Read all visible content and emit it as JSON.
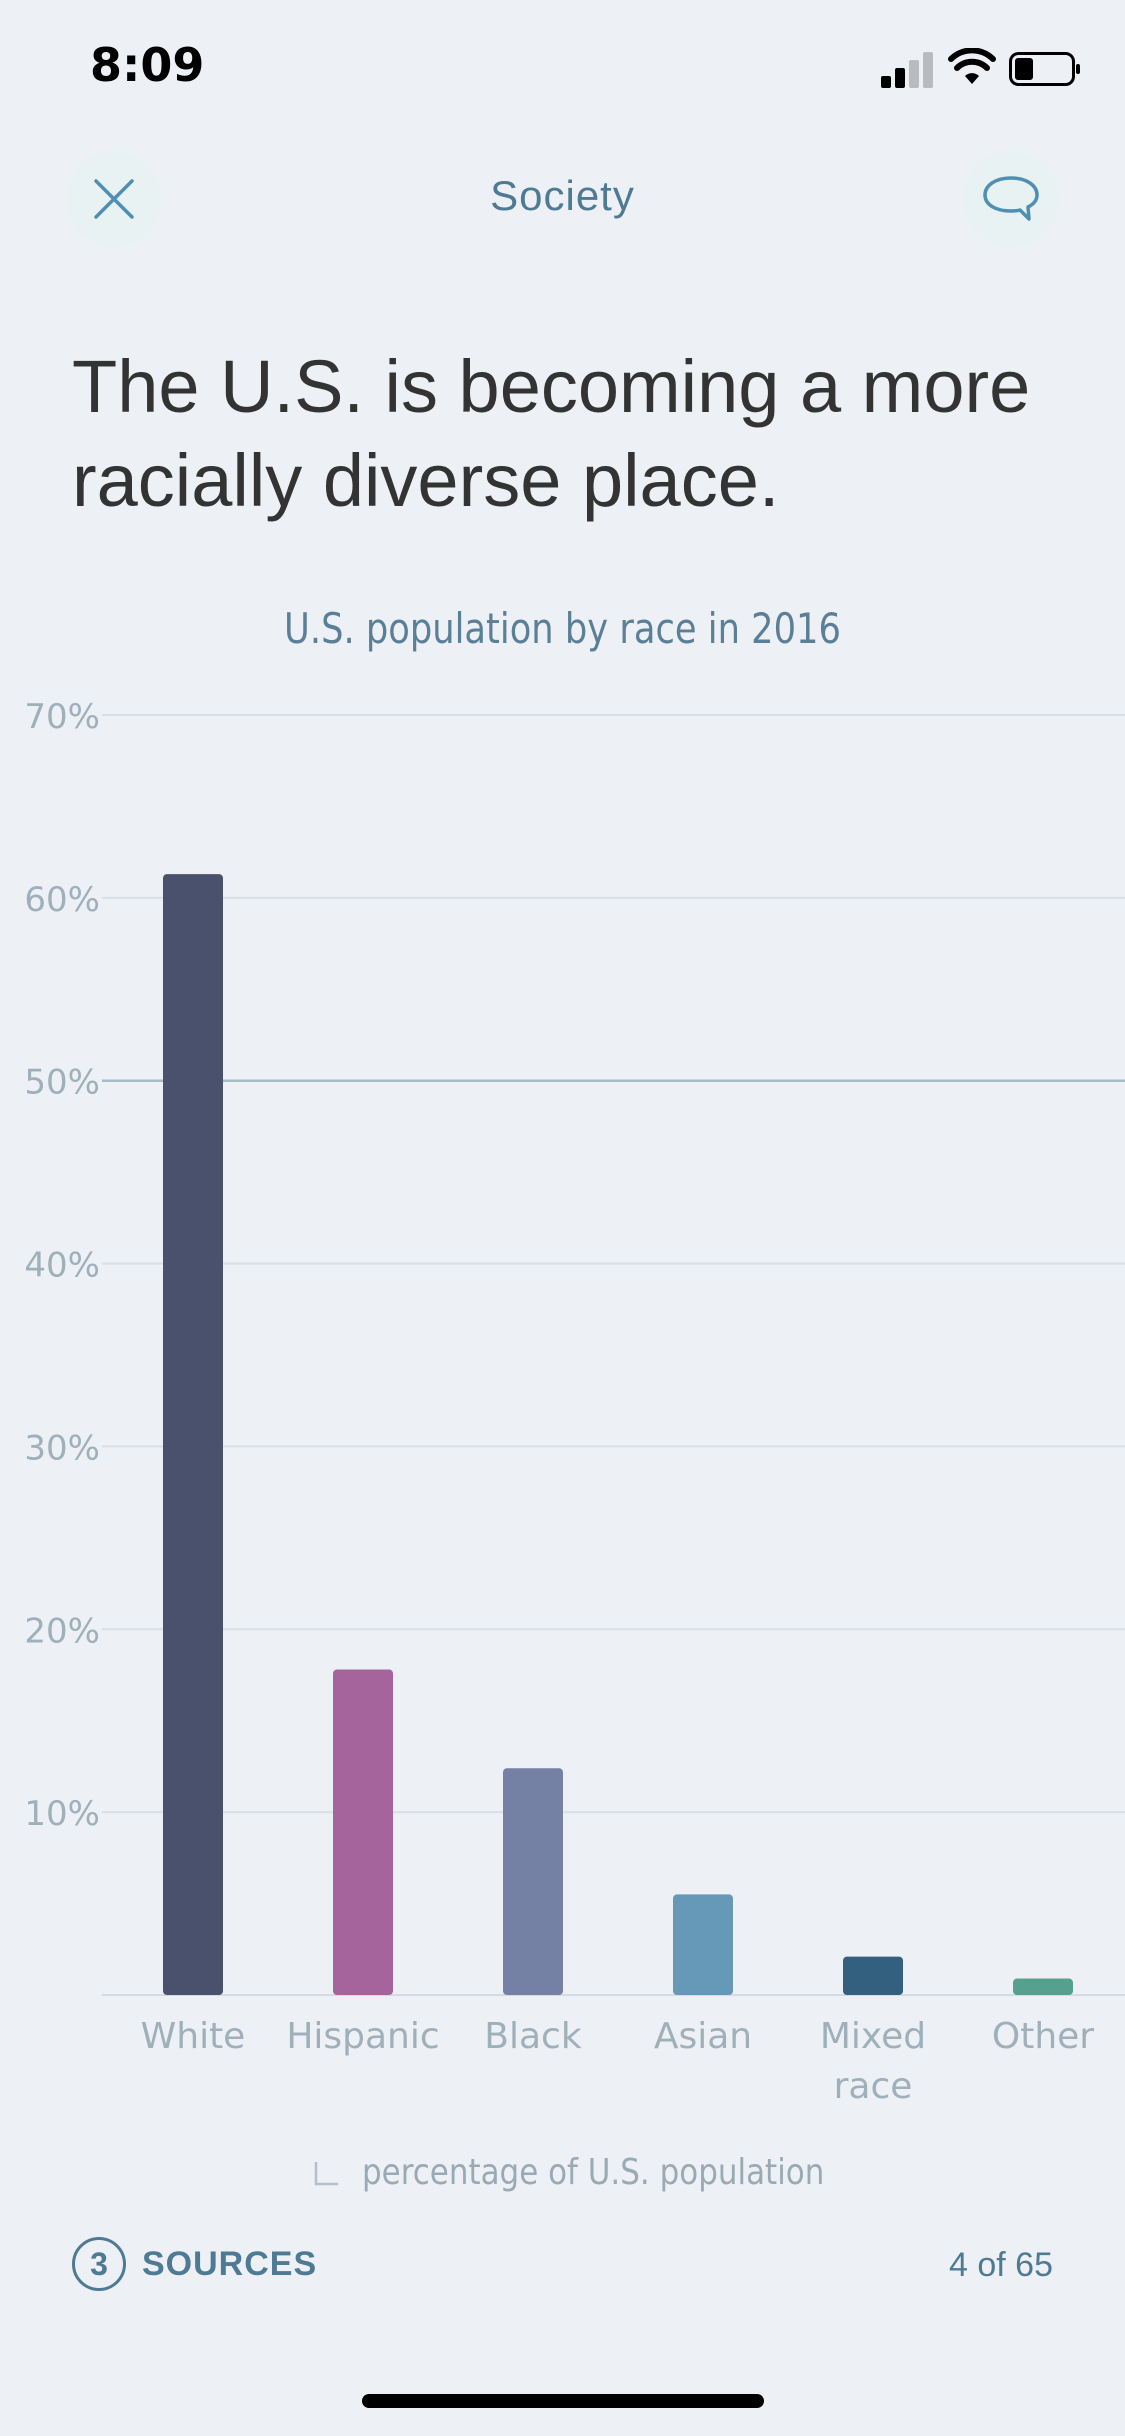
{
  "status_bar": {
    "time": "8:09"
  },
  "nav": {
    "title": "Society"
  },
  "headline": "The U.S. is becoming a more racially diverse place.",
  "footer": {
    "sources_count": "3",
    "sources_label": "SOURCES",
    "page_counter": "4 of 65",
    "axis_note": "percentage of U.S. population"
  },
  "colors": {
    "background": "#edf1f5",
    "accent": "#4e7a93"
  },
  "chart_data": {
    "type": "bar",
    "title": "U.S. population by race in 2016",
    "xlabel": "",
    "ylabel": "percentage of U.S. population",
    "ylim": [
      0,
      70
    ],
    "yticks": [
      "10%",
      "20%",
      "30%",
      "40%",
      "50%",
      "60%",
      "70%"
    ],
    "categories": [
      "White",
      "Hispanic",
      "Black",
      "Asian",
      "Mixed race",
      "Other"
    ],
    "values": [
      61.3,
      17.8,
      12.4,
      5.5,
      2.1,
      0.9
    ],
    "bar_colors": [
      "#4a516c",
      "#a5649c",
      "#7580a5",
      "#6699b8",
      "#33607f",
      "#56a18e"
    ],
    "highlight_gridline": 50,
    "grid": true,
    "legend": "none"
  }
}
